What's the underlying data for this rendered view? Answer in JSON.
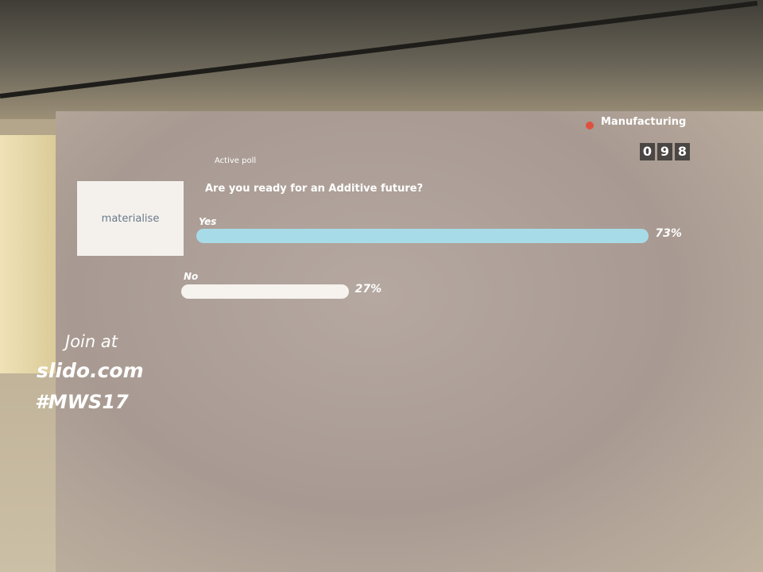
{
  "header": {
    "room": "Manufacturing",
    "counter": [
      "0",
      "9",
      "8"
    ]
  },
  "logo": "materialise",
  "poll": {
    "status": "Active poll",
    "question": "Are you ready for an Additive future?",
    "options": [
      {
        "label": "Yes",
        "value": 73,
        "value_label": "73%",
        "color": "#a8dbe8"
      },
      {
        "label": "No",
        "value": 27,
        "value_label": "27%",
        "color": "#f6f2ee"
      }
    ]
  },
  "join": {
    "line1": "Join at",
    "site": "slido.com",
    "hashtag": "#MWS17"
  }
}
